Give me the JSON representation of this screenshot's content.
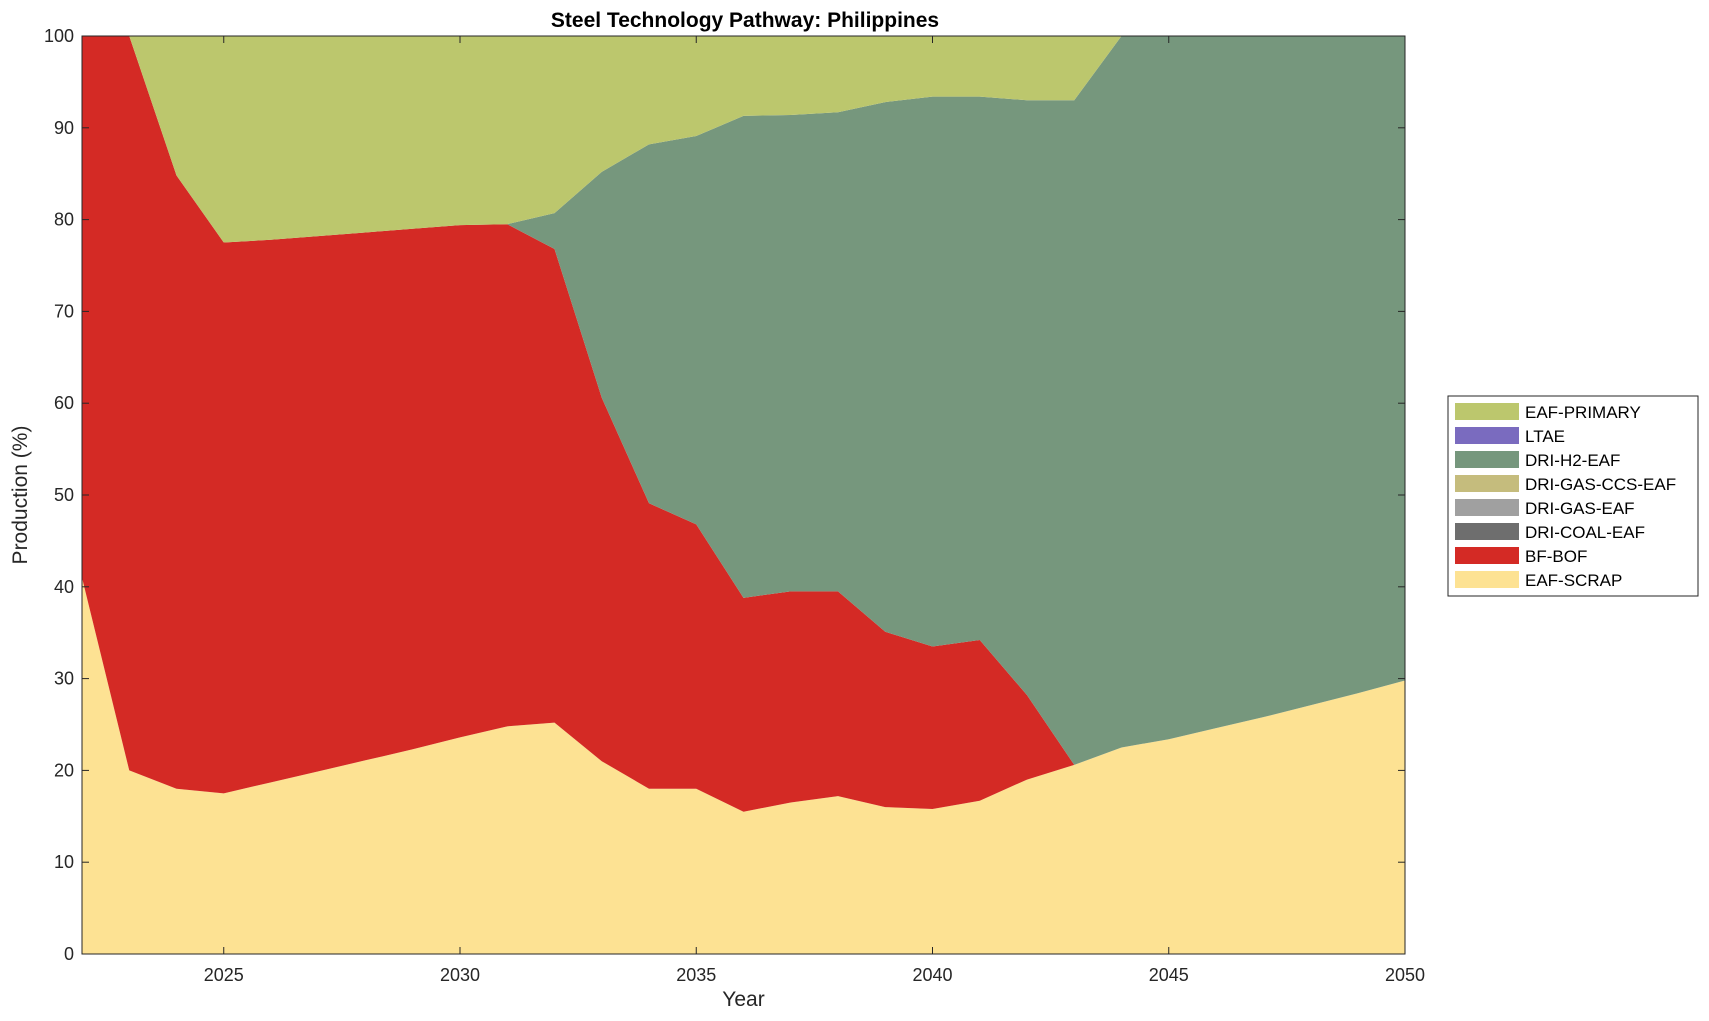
{
  "chart_data": {
    "type": "area",
    "title": "Steel Technology Pathway: Philippines",
    "xlabel": "Year",
    "ylabel": "Production (%)",
    "xlim": [
      2022,
      2050
    ],
    "ylim": [
      0,
      100
    ],
    "xticks": [
      2025,
      2030,
      2035,
      2040,
      2045,
      2050
    ],
    "yticks": [
      0,
      10,
      20,
      30,
      40,
      50,
      60,
      70,
      80,
      90,
      100
    ],
    "grid": false,
    "legend_position": "right",
    "x": [
      2022,
      2023,
      2024,
      2025,
      2026,
      2027,
      2028,
      2029,
      2030,
      2031,
      2032,
      2033,
      2034,
      2035,
      2036,
      2037,
      2038,
      2039,
      2040,
      2041,
      2042,
      2043,
      2044,
      2045,
      2046,
      2047,
      2048,
      2049,
      2050
    ],
    "series": [
      {
        "name": "EAF-SCRAP",
        "color": "#FDE293",
        "values": [
          41,
          20,
          18,
          17.5,
          18.7,
          19.9,
          21.1,
          22.3,
          23.6,
          24.8,
          25.2,
          21,
          18,
          18,
          15.5,
          16.5,
          17.2,
          16,
          15.8,
          16.7,
          19,
          20.6,
          22.5,
          23.4,
          24.6,
          25.8,
          27.1,
          28.4,
          29.8
        ]
      },
      {
        "name": "BF-BOF",
        "color": "#D42A25",
        "values": [
          59,
          80,
          66.8,
          60,
          59.1,
          58.3,
          57.5,
          56.7,
          55.8,
          54.7,
          51.6,
          39.6,
          31.1,
          28.8,
          23.3,
          23,
          22.3,
          19.1,
          17.7,
          17.5,
          9.2,
          0,
          0,
          0,
          0,
          0,
          0,
          0,
          0
        ]
      },
      {
        "name": "DRI-COAL-EAF",
        "color": "#6E6E6E",
        "values": [
          0,
          0,
          0,
          0,
          0,
          0,
          0,
          0,
          0,
          0,
          0,
          0,
          0,
          0,
          0,
          0,
          0,
          0,
          0,
          0,
          0,
          0,
          0,
          0,
          0,
          0,
          0,
          0,
          0
        ]
      },
      {
        "name": "DRI-GAS-EAF",
        "color": "#A0A0A0",
        "values": [
          0,
          0,
          0,
          0,
          0,
          0,
          0,
          0,
          0,
          0,
          0,
          0,
          0,
          0,
          0,
          0,
          0,
          0,
          0,
          0,
          0,
          0,
          0,
          0,
          0,
          0,
          0,
          0,
          0
        ]
      },
      {
        "name": "DRI-GAS-CCS-EAF",
        "color": "#C5BC7D",
        "values": [
          0,
          0,
          0,
          0,
          0,
          0,
          0,
          0,
          0,
          0,
          0,
          0,
          0,
          0,
          0,
          0,
          0,
          0,
          0,
          0,
          0,
          0,
          0,
          0,
          0,
          0,
          0,
          0,
          0
        ]
      },
      {
        "name": "DRI-H2-EAF",
        "color": "#76977D",
        "values": [
          0,
          0,
          0,
          0,
          0,
          0,
          0,
          0,
          0,
          0,
          3.9,
          24.6,
          39.1,
          42.3,
          52.5,
          51.9,
          52.2,
          57.7,
          59.9,
          59.2,
          64.8,
          72.4,
          77.5,
          76.6,
          75.4,
          74.2,
          72.9,
          71.6,
          70.2
        ]
      },
      {
        "name": "LTAE",
        "color": "#7A6BBF",
        "values": [
          0,
          0,
          0,
          0,
          0,
          0,
          0,
          0,
          0,
          0,
          0,
          0,
          0,
          0,
          0,
          0,
          0,
          0,
          0,
          0,
          0,
          0,
          0,
          0,
          0,
          0,
          0,
          0,
          0
        ]
      },
      {
        "name": "EAF-PRIMARY",
        "color": "#BCC76D",
        "values": [
          0,
          0,
          15.2,
          22.5,
          22.2,
          21.8,
          21.4,
          21,
          20.6,
          20.5,
          19.3,
          14.8,
          11.8,
          10.9,
          8.7,
          8.6,
          8.3,
          7.2,
          6.6,
          6.6,
          7,
          7,
          0,
          0,
          0,
          0,
          0,
          0,
          0
        ]
      }
    ],
    "legend_order": [
      "EAF-PRIMARY",
      "LTAE",
      "DRI-H2-EAF",
      "DRI-GAS-CCS-EAF",
      "DRI-GAS-EAF",
      "DRI-COAL-EAF",
      "BF-BOF",
      "EAF-SCRAP"
    ]
  }
}
